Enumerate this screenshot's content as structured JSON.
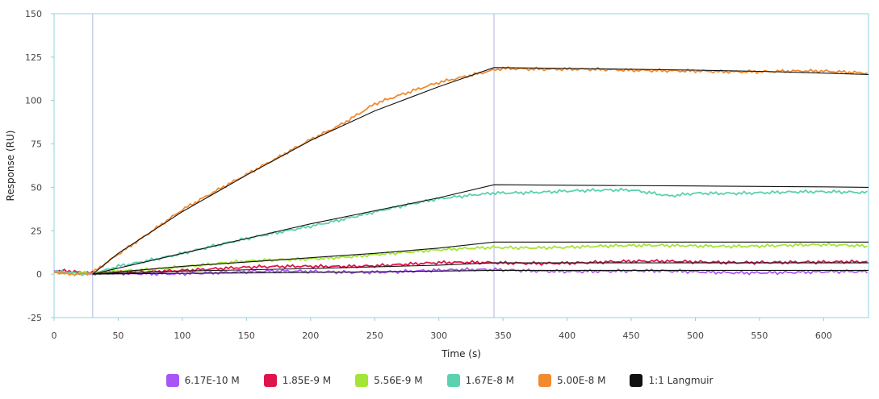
{
  "chart_data": {
    "type": "line",
    "xlabel": "Time (s)",
    "ylabel": "Response (RU)",
    "xlim": [
      0,
      635
    ],
    "ylim": [
      -25,
      150
    ],
    "x_ticks": [
      0,
      50,
      100,
      150,
      200,
      250,
      300,
      350,
      400,
      450,
      500,
      550,
      600
    ],
    "y_ticks": [
      -25,
      0,
      25,
      50,
      75,
      100,
      125,
      150
    ],
    "vertical_markers": [
      30,
      343
    ],
    "grid": false,
    "legend_position": "bottom",
    "series": [
      {
        "name": "6.17E-10 M",
        "color": "#a855f7",
        "points": [
          [
            0,
            1
          ],
          [
            10,
            0.5
          ],
          [
            20,
            0
          ],
          [
            30,
            0
          ],
          [
            50,
            0.4
          ],
          [
            100,
            0.8
          ],
          [
            150,
            1.1
          ],
          [
            200,
            1.4
          ],
          [
            250,
            1.6
          ],
          [
            300,
            1.9
          ],
          [
            343,
            2.3
          ],
          [
            400,
            2.1
          ],
          [
            450,
            1.6
          ],
          [
            500,
            1.2
          ],
          [
            550,
            1.3
          ],
          [
            600,
            1.1
          ],
          [
            635,
            1
          ]
        ]
      },
      {
        "name": "1.85E-9 M",
        "color": "#e0144c",
        "points": [
          [
            0,
            1
          ],
          [
            10,
            1.5
          ],
          [
            20,
            0.5
          ],
          [
            30,
            0.5
          ],
          [
            50,
            1.5
          ],
          [
            100,
            2.5
          ],
          [
            150,
            3.5
          ],
          [
            200,
            4.6
          ],
          [
            250,
            5.2
          ],
          [
            300,
            6.2
          ],
          [
            343,
            6.5
          ],
          [
            400,
            6.8
          ],
          [
            450,
            7
          ],
          [
            500,
            7.1
          ],
          [
            550,
            7.2
          ],
          [
            600,
            6.5
          ],
          [
            635,
            6.8
          ]
        ]
      },
      {
        "name": "5.56E-9 M",
        "color": "#a3e635",
        "points": [
          [
            0,
            1
          ],
          [
            10,
            0
          ],
          [
            20,
            0.5
          ],
          [
            30,
            0.5
          ],
          [
            50,
            2
          ],
          [
            100,
            4.5
          ],
          [
            150,
            7
          ],
          [
            200,
            9
          ],
          [
            250,
            11.5
          ],
          [
            300,
            13.5
          ],
          [
            343,
            15.5
          ],
          [
            400,
            15.8
          ],
          [
            450,
            16
          ],
          [
            500,
            16.5
          ],
          [
            550,
            16.5
          ],
          [
            600,
            16.5
          ],
          [
            635,
            16
          ]
        ]
      },
      {
        "name": "1.67E-8 M",
        "color": "#5ad1b0",
        "points": [
          [
            0,
            1
          ],
          [
            10,
            1
          ],
          [
            20,
            0
          ],
          [
            30,
            0
          ],
          [
            50,
            5
          ],
          [
            100,
            12
          ],
          [
            150,
            20
          ],
          [
            200,
            28
          ],
          [
            250,
            36
          ],
          [
            300,
            43
          ],
          [
            343,
            47
          ],
          [
            400,
            48
          ],
          [
            450,
            48
          ],
          [
            480,
            45
          ],
          [
            500,
            47
          ],
          [
            550,
            47
          ],
          [
            600,
            47
          ],
          [
            635,
            47
          ]
        ]
      },
      {
        "name": "5.00E-8 M",
        "color": "#f28a2e",
        "points": [
          [
            0,
            1
          ],
          [
            10,
            0
          ],
          [
            20,
            0
          ],
          [
            30,
            1
          ],
          [
            50,
            12
          ],
          [
            100,
            37
          ],
          [
            150,
            57
          ],
          [
            200,
            78
          ],
          [
            225,
            87
          ],
          [
            250,
            98
          ],
          [
            300,
            110
          ],
          [
            343,
            118
          ],
          [
            350,
            119
          ],
          [
            400,
            118
          ],
          [
            450,
            117
          ],
          [
            500,
            117.5
          ],
          [
            550,
            116.5
          ],
          [
            600,
            116.5
          ],
          [
            635,
            116
          ]
        ]
      },
      {
        "name": "1:1 Langmuir",
        "color": "#111111",
        "lines": [
          [
            [
              30,
              0
            ],
            [
              50,
              12
            ],
            [
              100,
              36
            ],
            [
              150,
              57
            ],
            [
              200,
              77
            ],
            [
              250,
              94
            ],
            [
              300,
              108
            ],
            [
              343,
              119
            ],
            [
              400,
              118.5
            ],
            [
              450,
              118
            ],
            [
              500,
              117.5
            ],
            [
              550,
              116.8
            ],
            [
              600,
              115.8
            ],
            [
              635,
              115
            ]
          ],
          [
            [
              30,
              0
            ],
            [
              100,
              12
            ],
            [
              150,
              20.5
            ],
            [
              200,
              29
            ],
            [
              250,
              36.5
            ],
            [
              300,
              44
            ],
            [
              343,
              51.5
            ],
            [
              400,
              51.2
            ],
            [
              500,
              50.8
            ],
            [
              600,
              50.3
            ],
            [
              635,
              50
            ]
          ],
          [
            [
              30,
              0
            ],
            [
              100,
              4.5
            ],
            [
              150,
              7
            ],
            [
              200,
              9.5
            ],
            [
              250,
              12
            ],
            [
              300,
              15
            ],
            [
              343,
              18.5
            ],
            [
              635,
              18.5
            ]
          ],
          [
            [
              30,
              0
            ],
            [
              100,
              1.8
            ],
            [
              200,
              3.2
            ],
            [
              300,
              5.2
            ],
            [
              343,
              6.5
            ],
            [
              635,
              6.5
            ]
          ],
          [
            [
              30,
              0
            ],
            [
              100,
              0.5
            ],
            [
              200,
              1
            ],
            [
              300,
              1.8
            ],
            [
              343,
              2.2
            ],
            [
              635,
              2.2
            ]
          ]
        ]
      }
    ]
  }
}
